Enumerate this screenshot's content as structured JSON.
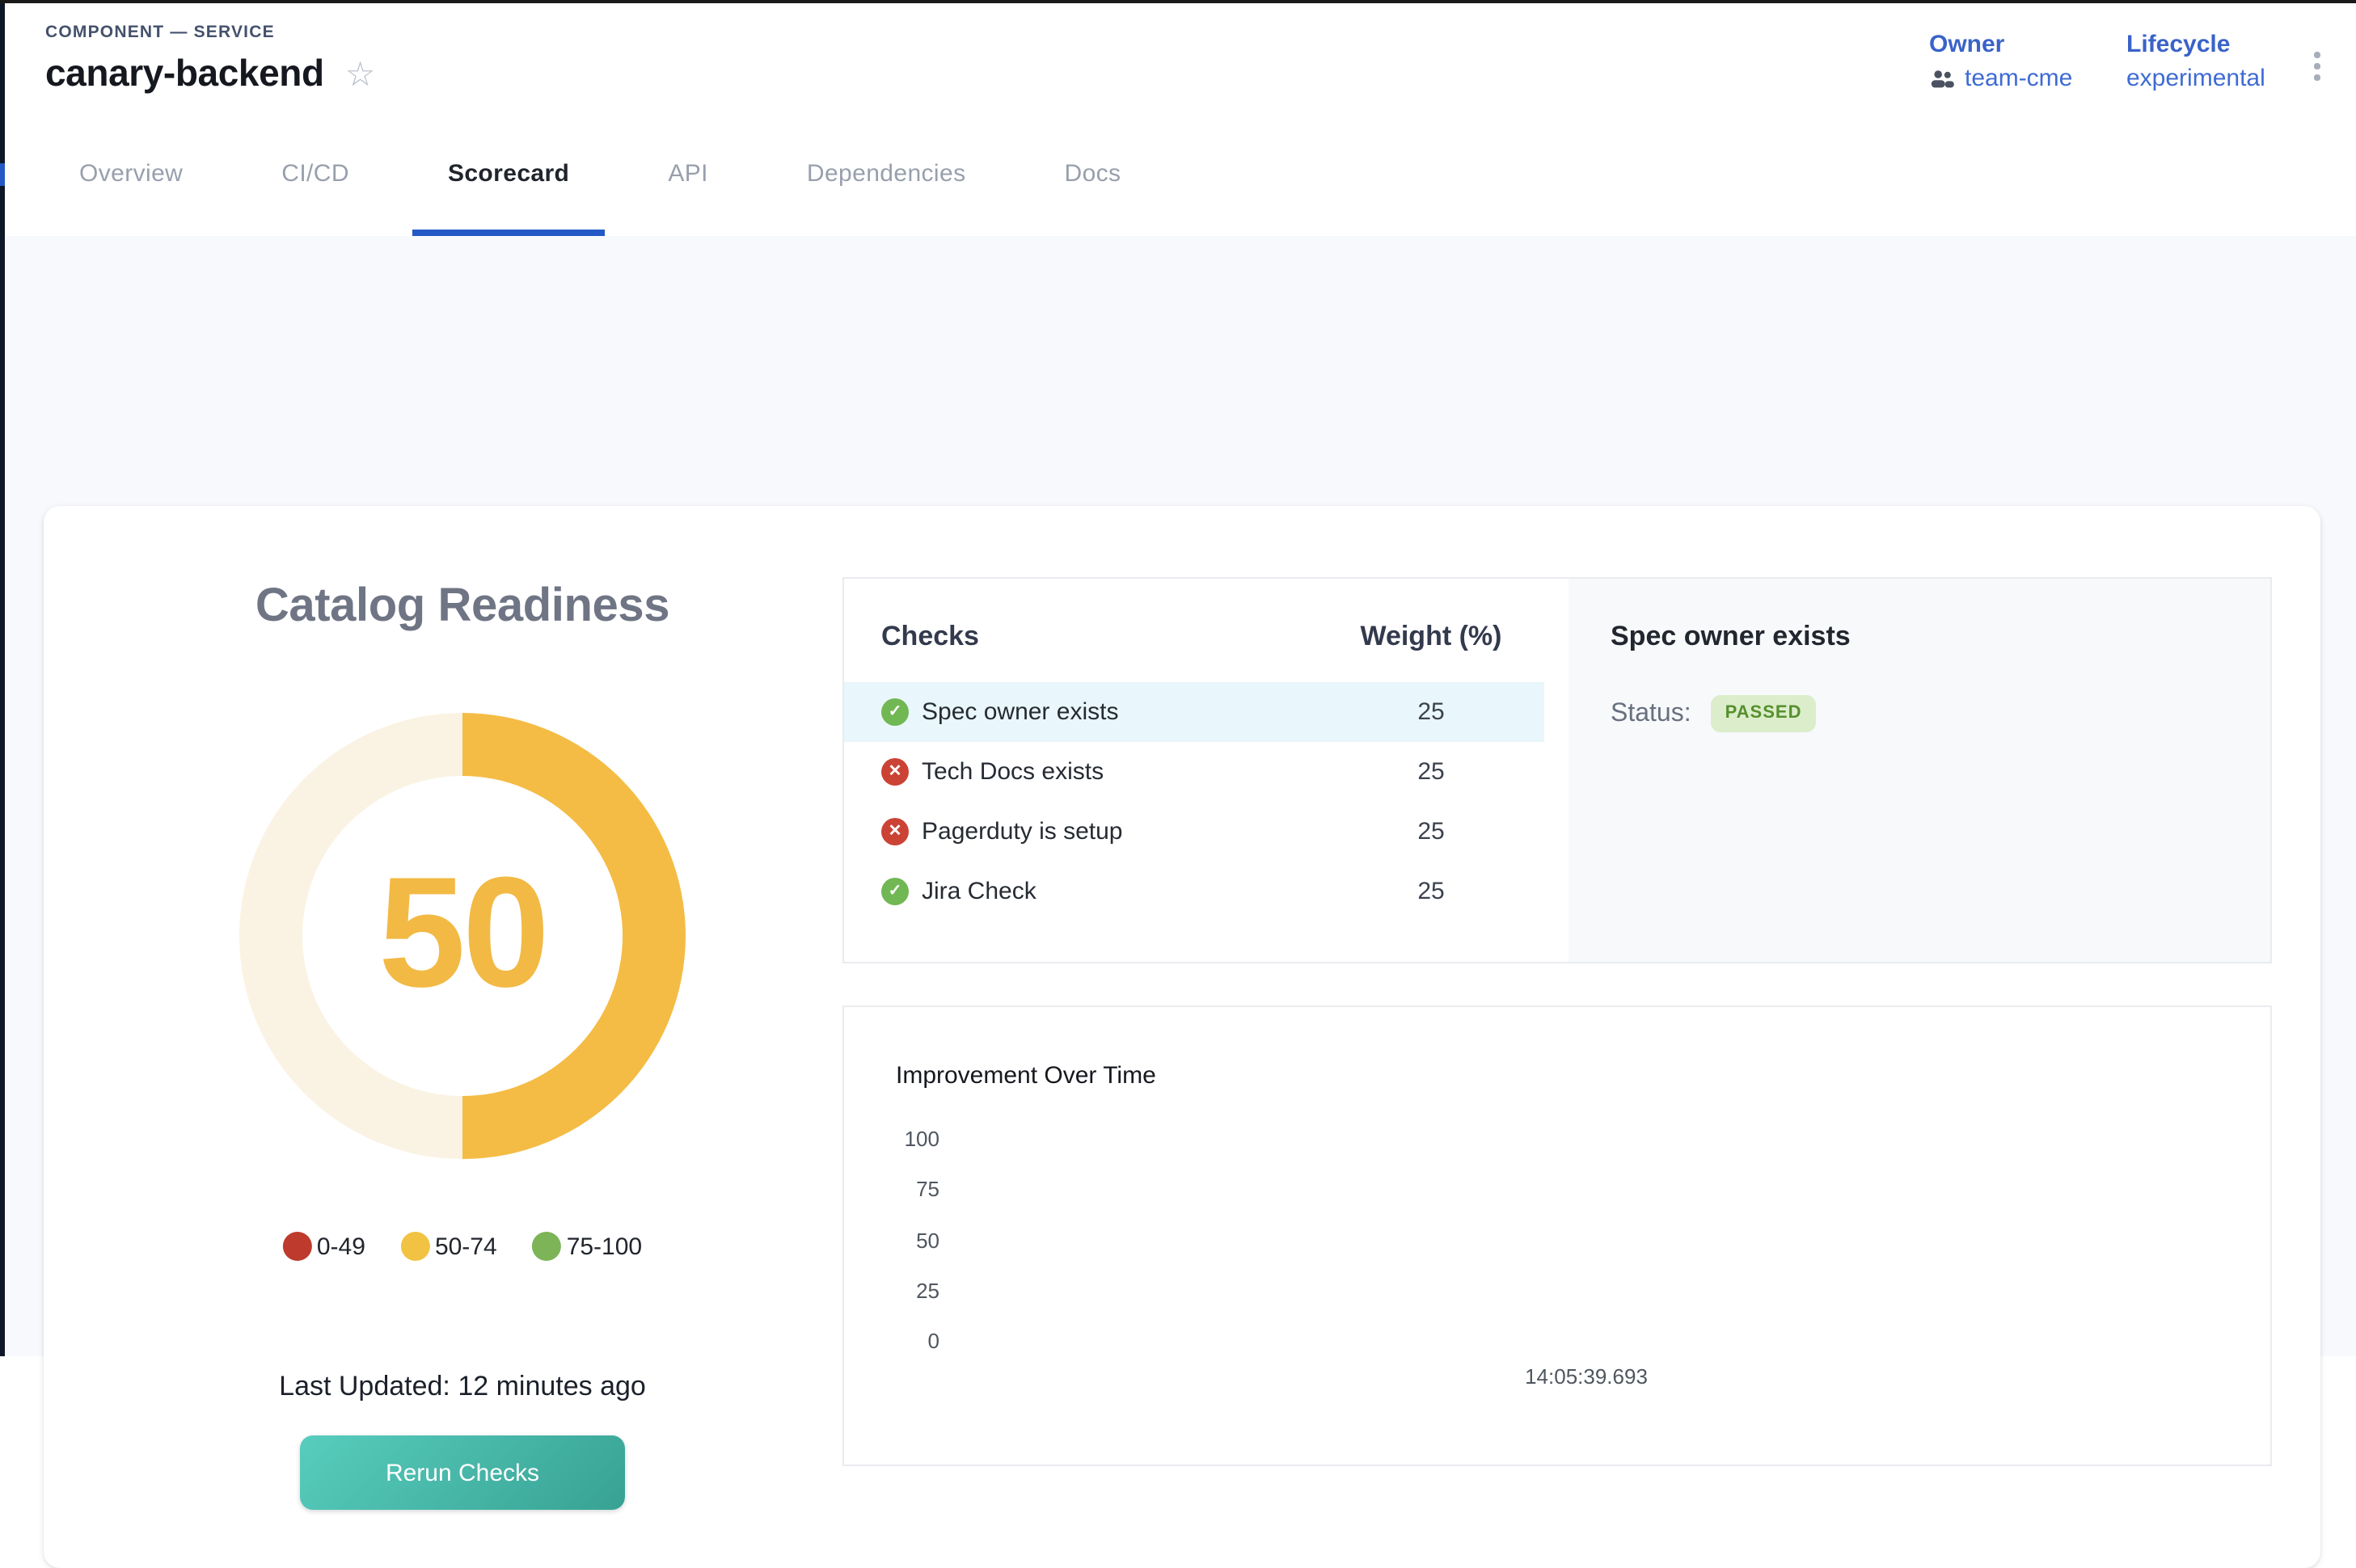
{
  "header": {
    "breadcrumb": "COMPONENT — SERVICE",
    "title": "canary-backend",
    "owner_label": "Owner",
    "owner_value": "team-cme",
    "lifecycle_label": "Lifecycle",
    "lifecycle_value": "experimental"
  },
  "tabs": [
    {
      "label": "Overview",
      "active": false
    },
    {
      "label": "CI/CD",
      "active": false
    },
    {
      "label": "Scorecard",
      "active": true
    },
    {
      "label": "API",
      "active": false
    },
    {
      "label": "Dependencies",
      "active": false
    },
    {
      "label": "Docs",
      "active": false
    }
  ],
  "gauge": {
    "title": "Catalog Readiness",
    "score": "50",
    "score_percent": 50,
    "fill_color": "#F4BC45",
    "track_color": "#FAF3E3",
    "score_color": "#F2B944",
    "legend": [
      {
        "label": "0-49",
        "color": "#BE3A2C"
      },
      {
        "label": "50-74",
        "color": "#F2C243"
      },
      {
        "label": "75-100",
        "color": "#7CB457"
      }
    ],
    "last_updated": "Last Updated: 12 minutes ago",
    "rerun_button": "Rerun Checks",
    "button_gradient": [
      "#58CDBD",
      "#37A294"
    ]
  },
  "checks": {
    "header": {
      "checks": "Checks",
      "weight": "Weight (%)"
    },
    "passed_color": "#71B753",
    "failed_color": "#CB4335",
    "rows": [
      {
        "name": "Spec owner exists",
        "weight": "25",
        "status": "passed",
        "selected": true
      },
      {
        "name": "Tech Docs exists",
        "weight": "25",
        "status": "failed",
        "selected": false
      },
      {
        "name": "Pagerduty is setup",
        "weight": "25",
        "status": "failed",
        "selected": false
      },
      {
        "name": "Jira Check",
        "weight": "25",
        "status": "passed",
        "selected": false
      }
    ]
  },
  "detail": {
    "title": "Spec owner exists",
    "status_label": "Status:",
    "status_value": "PASSED",
    "badge_bg": "#DCEDCB",
    "badge_text_color": "#55902C"
  },
  "chart_data": {
    "type": "line",
    "title": "Improvement Over Time",
    "y_ticks": [
      100,
      75,
      50,
      25,
      0
    ],
    "ylim": [
      0,
      100
    ],
    "x_ticks": [
      "14:05:39.693"
    ],
    "grid": false,
    "legend_position": "none",
    "series": []
  }
}
